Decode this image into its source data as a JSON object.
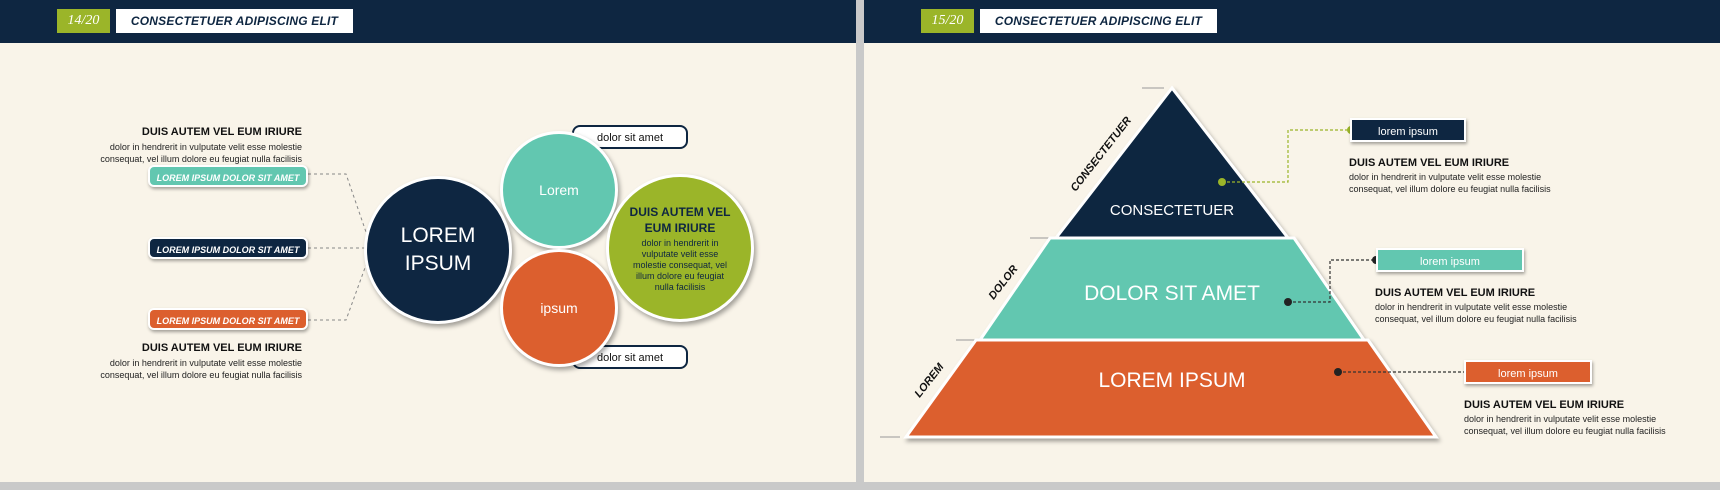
{
  "left_slide": {
    "page_number": "14/20",
    "title": "CONSECTETUER ADIPISCING ELIT",
    "top_block": {
      "heading": "DUIS AUTEM VEL EUM IRIURE",
      "line1": "dolor in hendrerit in vulputate velit esse molestie",
      "line2": "consequat, vel illum dolore eu feugiat nulla facilisis"
    },
    "pills": [
      {
        "label": "LOREM IPSUM DOLOR SIT AMET",
        "color": "#62c7b0"
      },
      {
        "label": "LOREM IPSUM DOLOR SIT AMET",
        "color": "#0e2641"
      },
      {
        "label": "LOREM IPSUM DOLOR SIT AMET",
        "color": "#dc5f2e"
      }
    ],
    "bottom_block": {
      "heading": "DUIS AUTEM VEL EUM IRIURE",
      "line1": "dolor in hendrerit in vulputate velit esse molestie",
      "line2": "consequat, vel illum dolore eu feugiat nulla facilisis"
    },
    "center_circle": {
      "line1": "LOREM",
      "line2": "IPSUM",
      "color": "#0e2641"
    },
    "circle_top": {
      "label": "Lorem",
      "color": "#62c7b0"
    },
    "circle_bottom": {
      "label": "ipsum",
      "color": "#dc5f2e"
    },
    "circle_right": {
      "heading1": "DUIS AUTEM VEL",
      "heading2": "EUM IRIURE",
      "lines": [
        "dolor in hendrerit in",
        "vulputate velit esse",
        "molestie consequat, vel",
        "illum dolore eu feugiat",
        "nulla facilisis"
      ],
      "color": "#9bb529"
    },
    "tab_top": "dolor sit amet",
    "tab_bottom": "dolor sit amet"
  },
  "right_slide": {
    "page_number": "15/20",
    "title": "CONSECTETUER ADIPISCING ELIT",
    "tiers": [
      {
        "label": "CONSECTETUER",
        "side_label": "CONSECTETUER",
        "color": "#0e2641"
      },
      {
        "label": "DOLOR SIT AMET",
        "side_label": "DOLOR",
        "color": "#62c7b0"
      },
      {
        "label": "LOREM IPSUM",
        "side_label": "LOREM",
        "color": "#dc5f2e"
      }
    ],
    "callouts": [
      {
        "label": "lorem ipsum",
        "color": "#0e2641",
        "heading": "DUIS AUTEM VEL EUM IRIURE",
        "line1": "dolor in hendrerit in vulputate velit esse molestie",
        "line2": "consequat, vel illum dolore eu feugiat nulla facilisis"
      },
      {
        "label": "lorem ipsum",
        "color": "#62c7b0",
        "heading": "DUIS AUTEM VEL EUM IRIURE",
        "line1": "dolor in hendrerit in vulputate velit esse molestie",
        "line2": "consequat, vel illum dolore eu feugiat nulla facilisis"
      },
      {
        "label": "lorem ipsum",
        "color": "#dc5f2e",
        "heading": "DUIS AUTEM VEL EUM IRIURE",
        "line1": "dolor in hendrerit in vulputate velit esse molestie",
        "line2": "consequat, vel illum dolore eu feugiat nulla facilisis"
      }
    ]
  }
}
